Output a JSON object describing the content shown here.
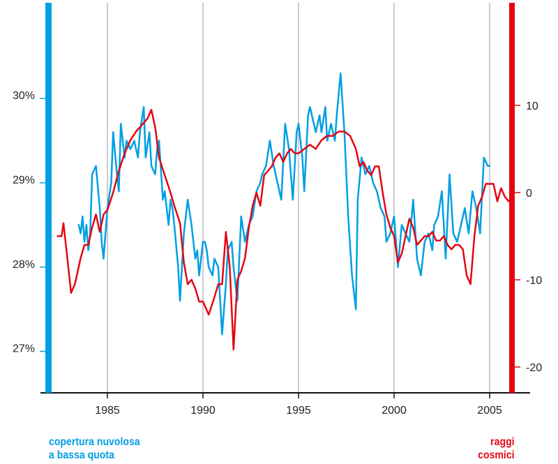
{
  "chart_data": {
    "type": "line",
    "title": "",
    "xlabel": "",
    "x_ticks": [
      "1985",
      "1990",
      "1995",
      "2000",
      "2005"
    ],
    "x_tick_values": [
      1985,
      1990,
      1995,
      2000,
      2005
    ],
    "xlim": [
      1981.6,
      2007.0
    ],
    "grid": "vertical",
    "left_axis": {
      "label_lines": [
        "copertura nuvolosa",
        "a bassa quota"
      ],
      "ticks": [
        "27%",
        "28%",
        "29%",
        "30%"
      ],
      "tick_values": [
        27,
        28,
        29,
        30
      ],
      "ylim": [
        26.5,
        31.2
      ],
      "color": "#009fe3"
    },
    "right_axis": {
      "label_lines": [
        "raggi",
        "cosmici"
      ],
      "ticks": [
        "-20",
        "-10",
        "0",
        "10"
      ],
      "tick_values": [
        -20,
        -10,
        0,
        10
      ],
      "ylim": [
        -23.2,
        21.8
      ],
      "color": "#e30613"
    },
    "series": [
      {
        "name": "copertura nuvolosa a bassa quota",
        "axis": "left",
        "color": "#009fe3",
        "x": [
          1983.5,
          1983.6,
          1983.7,
          1983.8,
          1983.9,
          1984.0,
          1984.1,
          1984.2,
          1984.4,
          1984.6,
          1984.7,
          1984.8,
          1985.0,
          1985.2,
          1985.3,
          1985.5,
          1985.6,
          1985.7,
          1985.9,
          1986.0,
          1986.2,
          1986.4,
          1986.6,
          1986.7,
          1986.9,
          1987.0,
          1987.2,
          1987.3,
          1987.5,
          1987.6,
          1987.7,
          1987.9,
          1988.0,
          1988.2,
          1988.3,
          1988.4,
          1988.5,
          1988.7,
          1988.8,
          1989.0,
          1989.2,
          1989.4,
          1989.6,
          1989.7,
          1989.8,
          1990.0,
          1990.1,
          1990.2,
          1990.3,
          1990.5,
          1990.6,
          1990.8,
          1991.0,
          1991.2,
          1991.3,
          1991.5,
          1991.6,
          1991.8,
          1992.0,
          1992.2,
          1992.4,
          1992.6,
          1992.8,
          1993.0,
          1993.1,
          1993.3,
          1993.5,
          1993.7,
          1993.9,
          1994.1,
          1994.3,
          1994.5,
          1994.7,
          1994.9,
          1995.0,
          1995.2,
          1995.3,
          1995.5,
          1995.6,
          1995.8,
          1995.9,
          1996.1,
          1996.2,
          1996.4,
          1996.5,
          1996.7,
          1996.9,
          1997.0,
          1997.2,
          1997.4,
          1997.6,
          1997.8,
          1998.0,
          1998.1,
          1998.3,
          1998.5,
          1998.7,
          1998.9,
          1999.1,
          1999.3,
          1999.5,
          1999.6,
          1999.8,
          2000.0,
          2000.2,
          2000.4,
          2000.6,
          2000.8,
          2001.0,
          2001.2,
          2001.4,
          2001.6,
          2001.8,
          2002.0,
          2002.1,
          2002.3,
          2002.5,
          2002.7,
          2002.9,
          2003.1,
          2003.3,
          2003.5,
          2003.7,
          2003.9,
          2004.1,
          2004.3,
          2004.5,
          2004.7,
          2004.9,
          2005.0
        ],
        "values": [
          28.5,
          28.4,
          28.6,
          28.3,
          28.5,
          28.2,
          28.4,
          29.1,
          29.2,
          28.7,
          28.3,
          28.1,
          28.7,
          29.0,
          29.6,
          29.1,
          28.9,
          29.7,
          29.3,
          29.5,
          29.4,
          29.5,
          29.3,
          29.6,
          29.9,
          29.3,
          29.6,
          29.2,
          29.1,
          29.4,
          29.5,
          28.8,
          28.9,
          28.5,
          28.8,
          28.7,
          28.5,
          28.0,
          27.6,
          28.4,
          28.8,
          28.5,
          28.1,
          28.2,
          27.9,
          28.3,
          28.3,
          28.2,
          28.0,
          27.9,
          28.1,
          28.0,
          27.2,
          27.8,
          28.2,
          28.3,
          28.0,
          27.6,
          28.6,
          28.3,
          28.5,
          28.6,
          28.9,
          29.0,
          29.1,
          29.2,
          29.5,
          29.2,
          29.0,
          28.8,
          29.7,
          29.4,
          28.8,
          29.6,
          29.7,
          29.3,
          28.9,
          29.8,
          29.9,
          29.7,
          29.6,
          29.8,
          29.6,
          29.9,
          29.5,
          29.7,
          29.5,
          29.8,
          30.3,
          29.6,
          28.6,
          27.9,
          27.5,
          28.8,
          29.3,
          29.1,
          29.2,
          29.0,
          28.9,
          28.7,
          28.6,
          28.3,
          28.4,
          28.6,
          28.0,
          28.5,
          28.4,
          28.3,
          28.8,
          28.1,
          27.9,
          28.3,
          28.4,
          28.2,
          28.5,
          28.6,
          28.9,
          28.1,
          29.1,
          28.4,
          28.3,
          28.5,
          28.7,
          28.4,
          28.9,
          28.7,
          28.4,
          29.3,
          29.2,
          29.2
        ]
      },
      {
        "name": "raggi cosmici",
        "axis": "right",
        "color": "#e30613",
        "x": [
          1982.4,
          1982.6,
          1982.7,
          1982.9,
          1983.1,
          1983.3,
          1983.6,
          1983.8,
          1984.0,
          1984.2,
          1984.4,
          1984.6,
          1984.8,
          1985.0,
          1985.3,
          1985.6,
          1985.9,
          1986.2,
          1986.5,
          1986.7,
          1986.9,
          1987.1,
          1987.3,
          1987.5,
          1987.7,
          1988.0,
          1988.3,
          1988.5,
          1988.8,
          1989.0,
          1989.2,
          1989.4,
          1989.6,
          1989.8,
          1990.0,
          1990.3,
          1990.6,
          1990.8,
          1991.0,
          1991.2,
          1991.4,
          1991.6,
          1991.8,
          1992.0,
          1992.2,
          1992.4,
          1992.6,
          1992.8,
          1993.0,
          1993.2,
          1993.4,
          1993.6,
          1993.8,
          1994.0,
          1994.2,
          1994.4,
          1994.6,
          1994.8,
          1995.0,
          1995.3,
          1995.6,
          1995.9,
          1996.2,
          1996.5,
          1996.8,
          1997.1,
          1997.4,
          1997.7,
          1998.0,
          1998.2,
          1998.4,
          1998.6,
          1998.8,
          1999.0,
          1999.2,
          1999.4,
          1999.6,
          1999.8,
          2000.0,
          2000.2,
          2000.4,
          2000.6,
          2000.8,
          2001.0,
          2001.2,
          2001.4,
          2001.6,
          2001.8,
          2002.0,
          2002.2,
          2002.4,
          2002.6,
          2002.8,
          2003.0,
          2003.2,
          2003.4,
          2003.6,
          2003.8,
          2004.0,
          2004.2,
          2004.4,
          2004.6,
          2004.8,
          2005.0,
          2005.2,
          2005.4,
          2005.6,
          2005.8,
          2006.0,
          2006.2
        ],
        "values": [
          -5.0,
          -5.0,
          -3.5,
          -7.5,
          -11.5,
          -10.5,
          -7.5,
          -6.0,
          -6.0,
          -4.0,
          -2.5,
          -4.5,
          -2.5,
          -2.0,
          0.0,
          2.5,
          4.5,
          6.0,
          7.0,
          7.5,
          8.0,
          8.5,
          9.5,
          7.5,
          4.0,
          2.0,
          0.0,
          -1.5,
          -3.5,
          -8.0,
          -10.5,
          -10.0,
          -11.0,
          -12.5,
          -12.5,
          -14.0,
          -12.0,
          -10.5,
          -10.5,
          -4.5,
          -8.5,
          -18.0,
          -10.0,
          -9.0,
          -7.5,
          -4.0,
          -1.5,
          0.0,
          -1.5,
          2.0,
          2.5,
          3.0,
          4.0,
          4.5,
          3.5,
          4.5,
          5.0,
          4.5,
          4.5,
          5.0,
          5.5,
          5.0,
          6.0,
          6.5,
          6.5,
          7.0,
          7.0,
          6.5,
          5.0,
          3.0,
          3.5,
          2.5,
          2.0,
          3.0,
          3.0,
          0.0,
          -2.5,
          -4.0,
          -5.0,
          -8.0,
          -7.0,
          -5.0,
          -3.0,
          -4.0,
          -6.0,
          -5.5,
          -5.0,
          -5.0,
          -4.5,
          -5.5,
          -5.5,
          -5.0,
          -6.0,
          -6.5,
          -6.0,
          -6.0,
          -6.5,
          -9.5,
          -10.5,
          -5.0,
          -1.5,
          -0.5,
          1.0,
          1.0,
          1.0,
          -1.0,
          0.5,
          -0.5,
          -1.0,
          -0.5
        ]
      }
    ]
  }
}
